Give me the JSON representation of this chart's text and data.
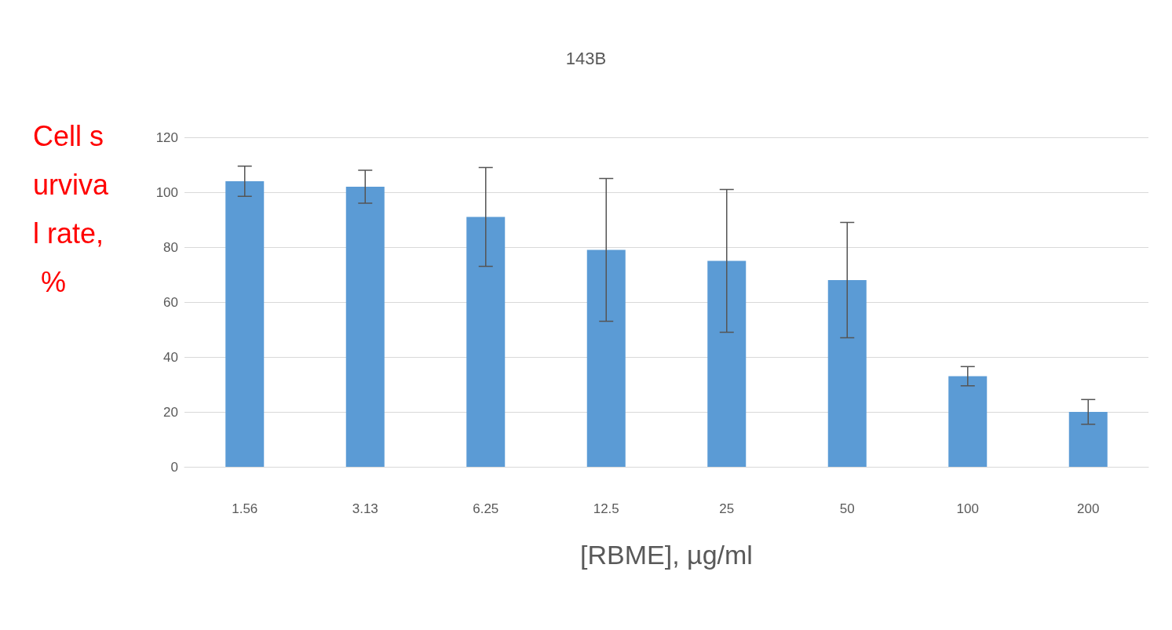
{
  "chart_data": {
    "type": "bar",
    "title": "143B",
    "xlabel": "[RBME], µg/ml",
    "ylabel": "Cell survival rate, %",
    "categories": [
      "1.56",
      "3.13",
      "6.25",
      "12.5",
      "25",
      "50",
      "100",
      "200"
    ],
    "values": [
      104,
      102,
      91,
      79,
      75,
      68,
      33,
      20
    ],
    "errors": [
      5.5,
      6,
      18,
      26,
      26,
      21,
      3.5,
      4.5
    ],
    "color": "#5b9bd5",
    "ylim": [
      0,
      120
    ],
    "yticks": [
      0,
      20,
      40,
      60,
      80,
      100,
      120
    ],
    "grid": "y"
  }
}
